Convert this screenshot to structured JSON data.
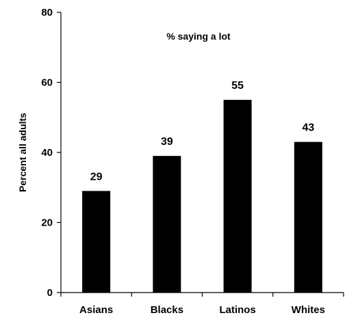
{
  "chart_data": {
    "type": "bar",
    "title": "% saying a lot",
    "ylabel": "Percent all adults",
    "xlabel": "",
    "categories": [
      "Asians",
      "Blacks",
      "Latinos",
      "Whites"
    ],
    "values": [
      29,
      39,
      55,
      43
    ],
    "data_labels": [
      "29",
      "39",
      "55",
      "43"
    ],
    "ylim": [
      0,
      80
    ],
    "yticks": [
      0,
      20,
      40,
      60,
      80
    ],
    "ytick_labels": [
      "0",
      "20",
      "40",
      "60",
      "80"
    ],
    "grid": false,
    "legend": "none",
    "bar_color": "#000000"
  }
}
